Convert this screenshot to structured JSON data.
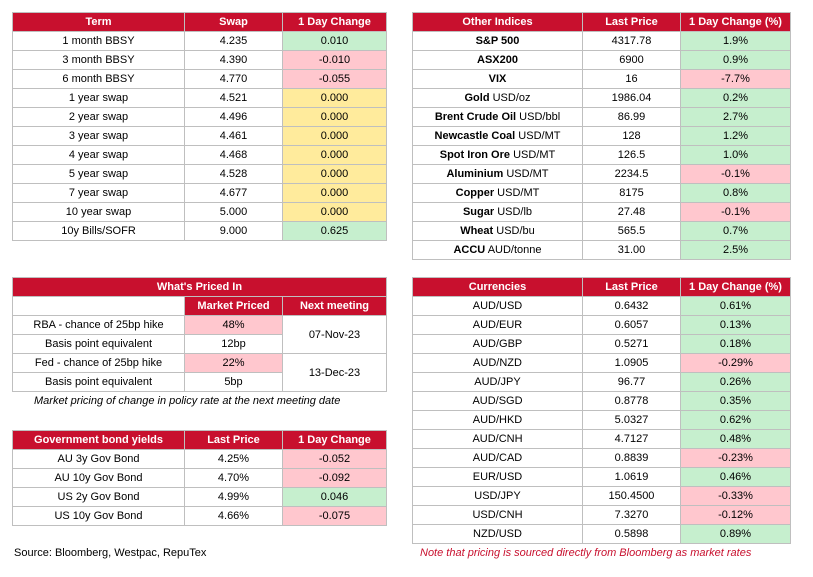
{
  "swaps": {
    "headers": [
      "Term",
      "Swap",
      "1 Day Change"
    ],
    "rows": [
      {
        "term": "1 month BBSY",
        "swap": "4.235",
        "change": "0.010",
        "tone": "green"
      },
      {
        "term": "3 month BBSY",
        "swap": "4.390",
        "change": "-0.010",
        "tone": "red"
      },
      {
        "term": "6 month BBSY",
        "swap": "4.770",
        "change": "-0.055",
        "tone": "red"
      },
      {
        "term": "1 year swap",
        "swap": "4.521",
        "change": "0.000",
        "tone": "yellow"
      },
      {
        "term": "2 year swap",
        "swap": "4.496",
        "change": "0.000",
        "tone": "yellow"
      },
      {
        "term": "3 year swap",
        "swap": "4.461",
        "change": "0.000",
        "tone": "yellow"
      },
      {
        "term": "4 year swap",
        "swap": "4.468",
        "change": "0.000",
        "tone": "yellow"
      },
      {
        "term": "5 year swap",
        "swap": "4.528",
        "change": "0.000",
        "tone": "yellow"
      },
      {
        "term": "7 year swap",
        "swap": "4.677",
        "change": "0.000",
        "tone": "yellow"
      },
      {
        "term": "10 year swap",
        "swap": "5.000",
        "change": "0.000",
        "tone": "yellow"
      },
      {
        "term": "10y Bills/SOFR",
        "swap": "9.000",
        "change": "0.625",
        "tone": "green"
      }
    ]
  },
  "indices": {
    "headers": [
      "Other Indices",
      "Last Price",
      "1 Day Change (%)"
    ],
    "rows": [
      {
        "name": "S&P 500",
        "unit": "",
        "price": "4317.78",
        "change": "1.9%",
        "tone": "green"
      },
      {
        "name": "ASX200",
        "unit": "",
        "price": "6900",
        "change": "0.9%",
        "tone": "green"
      },
      {
        "name": "VIX",
        "unit": "",
        "price": "16",
        "change": "-7.7%",
        "tone": "red"
      },
      {
        "name": "Gold",
        "unit": " USD/oz",
        "price": "1986.04",
        "change": "0.2%",
        "tone": "green"
      },
      {
        "name": "Brent Crude Oil",
        "unit": " USD/bbl",
        "price": "86.99",
        "change": "2.7%",
        "tone": "green"
      },
      {
        "name": "Newcastle Coal",
        "unit": " USD/MT",
        "price": "128",
        "change": "1.2%",
        "tone": "green"
      },
      {
        "name": "Spot Iron Ore",
        "unit": " USD/MT",
        "price": "126.5",
        "change": "1.0%",
        "tone": "green"
      },
      {
        "name": "Aluminium",
        "unit": " USD/MT",
        "price": "2234.5",
        "change": "-0.1%",
        "tone": "red"
      },
      {
        "name": "Copper",
        "unit": " USD/MT",
        "price": "8175",
        "change": "0.8%",
        "tone": "green"
      },
      {
        "name": "Sugar",
        "unit": " USD/lb",
        "price": "27.48",
        "change": "-0.1%",
        "tone": "red"
      },
      {
        "name": "Wheat",
        "unit": " USD/bu",
        "price": "565.5",
        "change": "0.7%",
        "tone": "green"
      },
      {
        "name": "ACCU",
        "unit": " AUD/tonne",
        "price": "31.00",
        "change": "2.5%",
        "tone": "green"
      }
    ]
  },
  "priced": {
    "title": "What's Priced In",
    "headers": [
      "Market Priced",
      "Next meeting"
    ],
    "rows": [
      {
        "label": "RBA - chance of 25bp hike",
        "value": "48%",
        "tone": "red"
      },
      {
        "label": "Basis point equivalent",
        "value": "12bp",
        "tone": ""
      },
      {
        "label": "Fed - chance of 25bp hike",
        "value": "22%",
        "tone": "red"
      },
      {
        "label": "Basis point equivalent",
        "value": "5bp",
        "tone": ""
      }
    ],
    "meetings": [
      "07-Nov-23",
      "13-Dec-23"
    ],
    "note": "Market pricing of change in policy rate at the next meeting date"
  },
  "bonds": {
    "headers": [
      "Government bond yields",
      "Last Price",
      "1 Day Change"
    ],
    "rows": [
      {
        "name": "AU 3y Gov Bond",
        "price": "4.25%",
        "change": "-0.052",
        "tone": "red"
      },
      {
        "name": "AU 10y Gov Bond",
        "price": "4.70%",
        "change": "-0.092",
        "tone": "red"
      },
      {
        "name": "US 2y Gov Bond",
        "price": "4.99%",
        "change": "0.046",
        "tone": "green"
      },
      {
        "name": "US 10y Gov Bond",
        "price": "4.66%",
        "change": "-0.075",
        "tone": "red"
      }
    ]
  },
  "currencies": {
    "headers": [
      "Currencies",
      "Last Price",
      "1 Day Change (%)"
    ],
    "rows": [
      {
        "pair": "AUD/USD",
        "price": "0.6432",
        "change": "0.61%",
        "tone": "green"
      },
      {
        "pair": "AUD/EUR",
        "price": "0.6057",
        "change": "0.13%",
        "tone": "green"
      },
      {
        "pair": "AUD/GBP",
        "price": "0.5271",
        "change": "0.18%",
        "tone": "green"
      },
      {
        "pair": "AUD/NZD",
        "price": "1.0905",
        "change": "-0.29%",
        "tone": "red"
      },
      {
        "pair": "AUD/JPY",
        "price": "96.77",
        "change": "0.26%",
        "tone": "green"
      },
      {
        "pair": "AUD/SGD",
        "price": "0.8778",
        "change": "0.35%",
        "tone": "green"
      },
      {
        "pair": "AUD/HKD",
        "price": "5.0327",
        "change": "0.62%",
        "tone": "green"
      },
      {
        "pair": "AUD/CNH",
        "price": "4.7127",
        "change": "0.48%",
        "tone": "green"
      },
      {
        "pair": "AUD/CAD",
        "price": "0.8839",
        "change": "-0.23%",
        "tone": "red"
      },
      {
        "pair": "EUR/USD",
        "price": "1.0619",
        "change": "0.46%",
        "tone": "green"
      },
      {
        "pair": "USD/JPY",
        "price": "150.4500",
        "change": "-0.33%",
        "tone": "red"
      },
      {
        "pair": "USD/CNH",
        "price": "7.3270",
        "change": "-0.12%",
        "tone": "red"
      },
      {
        "pair": "NZD/USD",
        "price": "0.5898",
        "change": "0.89%",
        "tone": "green"
      }
    ]
  },
  "footer": {
    "source": "Source: Bloomberg, Westpac, RepuTex",
    "disclaimer": "Note that pricing is sourced directly from Bloomberg as market rates"
  }
}
